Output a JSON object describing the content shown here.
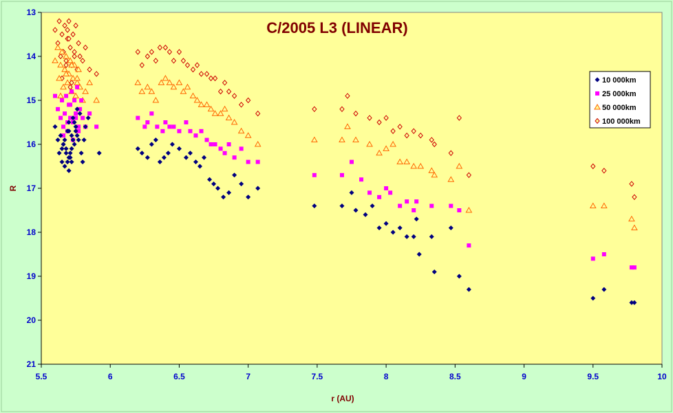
{
  "chart_data": {
    "type": "scatter",
    "title": "C/2005 L3 (LINEAR)",
    "xlabel": "r (AU)",
    "ylabel": "R",
    "xlim": [
      5.5,
      10
    ],
    "ylim": [
      13,
      21
    ],
    "y_inverted": true,
    "xticks": [
      "5.5",
      "6",
      "6.5",
      "7",
      "7.5",
      "8",
      "8.5",
      "9",
      "9.5",
      "10"
    ],
    "yticks": [
      "13",
      "14",
      "15",
      "16",
      "17",
      "18",
      "19",
      "20",
      "21"
    ],
    "grid": false,
    "legend_position": "right",
    "colors": {
      "page_background": "#CCFFCC",
      "plot_background": "#FFFF99",
      "title": "#800000",
      "ticks": "#0000CC"
    },
    "series": [
      {
        "name": "10 000km",
        "marker": "diamond",
        "color": "#000080",
        "x": [
          5.6,
          5.62,
          5.63,
          5.64,
          5.65,
          5.66,
          5.67,
          5.68,
          5.69,
          5.7,
          5.7,
          5.71,
          5.72,
          5.73,
          5.74,
          5.75,
          5.76,
          5.77,
          5.78,
          5.8,
          5.82,
          5.66,
          5.68,
          5.7,
          5.72,
          5.74,
          5.69,
          5.71,
          5.73,
          5.75,
          5.67,
          5.65,
          5.7,
          5.72,
          5.76,
          5.79,
          5.81,
          5.84,
          5.92,
          6.2,
          6.23,
          6.27,
          6.3,
          6.33,
          6.36,
          6.39,
          6.42,
          6.45,
          6.5,
          6.55,
          6.58,
          6.62,
          6.65,
          6.68,
          6.72,
          6.75,
          6.78,
          6.82,
          6.86,
          6.9,
          6.95,
          7.0,
          7.07,
          7.48,
          7.68,
          7.75,
          7.78,
          7.85,
          7.9,
          7.95,
          8.0,
          8.05,
          8.1,
          8.15,
          8.2,
          8.22,
          8.24,
          8.33,
          8.35,
          8.47,
          8.53,
          8.6,
          9.5,
          9.58,
          9.78,
          9.8
        ],
        "y": [
          15.6,
          15.9,
          16.2,
          15.8,
          16.4,
          16.0,
          16.5,
          16.1,
          15.7,
          16.3,
          15.5,
          16.2,
          15.8,
          15.4,
          16.0,
          15.6,
          15.2,
          15.9,
          15.3,
          16.4,
          15.6,
          16.0,
          16.2,
          15.7,
          16.1,
          15.5,
          16.4,
          16.3,
          15.9,
          15.7,
          15.9,
          16.1,
          16.6,
          16.4,
          15.8,
          16.2,
          15.9,
          15.4,
          16.2,
          16.1,
          16.2,
          16.3,
          16.0,
          15.9,
          16.4,
          16.3,
          16.2,
          16.0,
          16.1,
          16.3,
          16.2,
          16.4,
          16.5,
          16.3,
          16.8,
          16.9,
          17.0,
          17.2,
          17.1,
          16.7,
          16.9,
          17.2,
          17.0,
          17.4,
          17.4,
          17.1,
          17.5,
          17.6,
          17.4,
          17.9,
          17.8,
          18.0,
          17.9,
          18.1,
          18.1,
          17.7,
          18.5,
          18.1,
          18.9,
          17.9,
          19.0,
          19.3,
          19.5,
          19.3,
          19.6,
          19.6
        ]
      },
      {
        "name": "25 000km",
        "marker": "square",
        "color": "#FF00FF",
        "x": [
          5.6,
          5.62,
          5.64,
          5.65,
          5.66,
          5.67,
          5.68,
          5.69,
          5.7,
          5.71,
          5.72,
          5.73,
          5.74,
          5.75,
          5.76,
          5.77,
          5.78,
          5.79,
          5.8,
          5.82,
          5.85,
          5.9,
          5.66,
          5.69,
          5.71,
          5.73,
          5.75,
          5.77,
          6.2,
          6.25,
          6.27,
          6.3,
          6.34,
          6.38,
          6.4,
          6.43,
          6.46,
          6.5,
          6.55,
          6.58,
          6.62,
          6.66,
          6.7,
          6.73,
          6.76,
          6.8,
          6.83,
          6.86,
          6.9,
          6.95,
          7.0,
          7.07,
          7.48,
          7.68,
          7.75,
          7.82,
          7.88,
          7.95,
          8.0,
          8.03,
          8.1,
          8.15,
          8.2,
          8.22,
          8.33,
          8.47,
          8.53,
          8.6,
          9.5,
          9.58,
          9.78,
          9.8
        ],
        "y": [
          14.9,
          15.2,
          15.4,
          15.0,
          15.6,
          15.3,
          14.9,
          15.7,
          15.1,
          15.4,
          14.8,
          15.5,
          15.0,
          15.3,
          14.7,
          15.6,
          15.2,
          15.0,
          15.4,
          15.6,
          15.3,
          15.6,
          15.8,
          15.5,
          15.1,
          15.9,
          15.4,
          15.7,
          15.4,
          15.6,
          15.5,
          15.3,
          15.6,
          15.7,
          15.5,
          15.6,
          15.6,
          15.7,
          15.5,
          15.7,
          15.8,
          15.7,
          15.9,
          16.0,
          16.0,
          16.1,
          16.2,
          16.0,
          16.3,
          16.1,
          16.4,
          16.4,
          16.7,
          16.7,
          16.4,
          16.8,
          17.1,
          17.2,
          17.0,
          17.1,
          17.4,
          17.3,
          17.5,
          17.3,
          17.4,
          17.4,
          17.5,
          18.3,
          18.6,
          18.5,
          18.8,
          18.8
        ]
      },
      {
        "name": "50 000km",
        "marker": "triangle",
        "color": "#FF6600",
        "x": [
          5.6,
          5.62,
          5.63,
          5.64,
          5.65,
          5.66,
          5.67,
          5.68,
          5.69,
          5.7,
          5.71,
          5.72,
          5.73,
          5.74,
          5.75,
          5.76,
          5.77,
          5.78,
          5.8,
          5.82,
          5.85,
          5.9,
          5.64,
          5.68,
          5.72,
          5.76,
          6.2,
          6.23,
          6.27,
          6.3,
          6.33,
          6.37,
          6.4,
          6.43,
          6.46,
          6.5,
          6.53,
          6.56,
          6.6,
          6.63,
          6.66,
          6.7,
          6.73,
          6.76,
          6.8,
          6.83,
          6.86,
          6.9,
          6.95,
          7.0,
          7.07,
          7.48,
          7.68,
          7.72,
          7.78,
          7.88,
          7.95,
          8.0,
          8.05,
          8.1,
          8.15,
          8.2,
          8.25,
          8.33,
          8.35,
          8.47,
          8.53,
          8.6,
          9.5,
          9.58,
          9.78,
          9.8
        ],
        "y": [
          14.1,
          13.8,
          14.5,
          14.2,
          13.9,
          14.7,
          14.3,
          14.0,
          14.6,
          14.4,
          14.1,
          14.8,
          14.5,
          14.2,
          14.9,
          14.6,
          14.3,
          14.7,
          15.0,
          14.8,
          14.6,
          15.0,
          14.9,
          14.4,
          14.2,
          14.5,
          14.6,
          14.8,
          14.7,
          14.8,
          15.0,
          14.6,
          14.5,
          14.6,
          14.7,
          14.6,
          14.8,
          14.7,
          14.9,
          15.0,
          15.1,
          15.1,
          15.2,
          15.3,
          15.3,
          15.2,
          15.4,
          15.5,
          15.7,
          15.8,
          16.0,
          15.9,
          15.9,
          15.6,
          15.9,
          16.0,
          16.2,
          16.1,
          16.0,
          16.4,
          16.4,
          16.5,
          16.5,
          16.6,
          16.7,
          16.8,
          16.5,
          17.5,
          17.4,
          17.4,
          17.7,
          17.9
        ]
      },
      {
        "name": "100 000km",
        "marker": "circle",
        "color": "#CC0000",
        "x": [
          5.6,
          5.62,
          5.63,
          5.64,
          5.65,
          5.66,
          5.67,
          5.68,
          5.69,
          5.7,
          5.71,
          5.72,
          5.73,
          5.74,
          5.75,
          5.76,
          5.77,
          5.78,
          5.8,
          5.82,
          5.85,
          5.9,
          5.65,
          5.68,
          5.7,
          5.72,
          5.74,
          5.66,
          5.69,
          5.71,
          6.2,
          6.23,
          6.27,
          6.3,
          6.33,
          6.36,
          6.4,
          6.43,
          6.46,
          6.5,
          6.53,
          6.56,
          6.6,
          6.63,
          6.66,
          6.7,
          6.73,
          6.76,
          6.8,
          6.83,
          6.86,
          6.9,
          6.95,
          7.0,
          7.07,
          7.48,
          7.68,
          7.72,
          7.78,
          7.88,
          7.95,
          8.0,
          8.05,
          8.1,
          8.15,
          8.2,
          8.25,
          8.33,
          8.35,
          8.47,
          8.53,
          8.6,
          9.5,
          9.58,
          9.78,
          9.8
        ],
        "y": [
          13.4,
          13.7,
          13.2,
          14.0,
          13.5,
          13.9,
          13.3,
          14.1,
          13.6,
          13.2,
          13.8,
          14.2,
          13.5,
          13.9,
          13.3,
          14.3,
          13.7,
          14.0,
          14.1,
          13.8,
          14.3,
          14.4,
          14.5,
          14.2,
          13.6,
          14.6,
          14.0,
          13.9,
          13.4,
          14.7,
          13.9,
          14.2,
          14.0,
          13.9,
          14.1,
          13.8,
          13.8,
          13.9,
          14.1,
          13.9,
          14.1,
          14.2,
          14.3,
          14.2,
          14.4,
          14.4,
          14.5,
          14.5,
          14.8,
          14.6,
          14.8,
          14.9,
          15.1,
          15.0,
          15.3,
          15.2,
          15.2,
          14.9,
          15.3,
          15.4,
          15.5,
          15.4,
          15.7,
          15.6,
          15.8,
          15.7,
          15.8,
          15.9,
          16.0,
          16.2,
          15.4,
          16.7,
          16.5,
          16.6,
          16.9,
          17.2
        ]
      }
    ]
  }
}
